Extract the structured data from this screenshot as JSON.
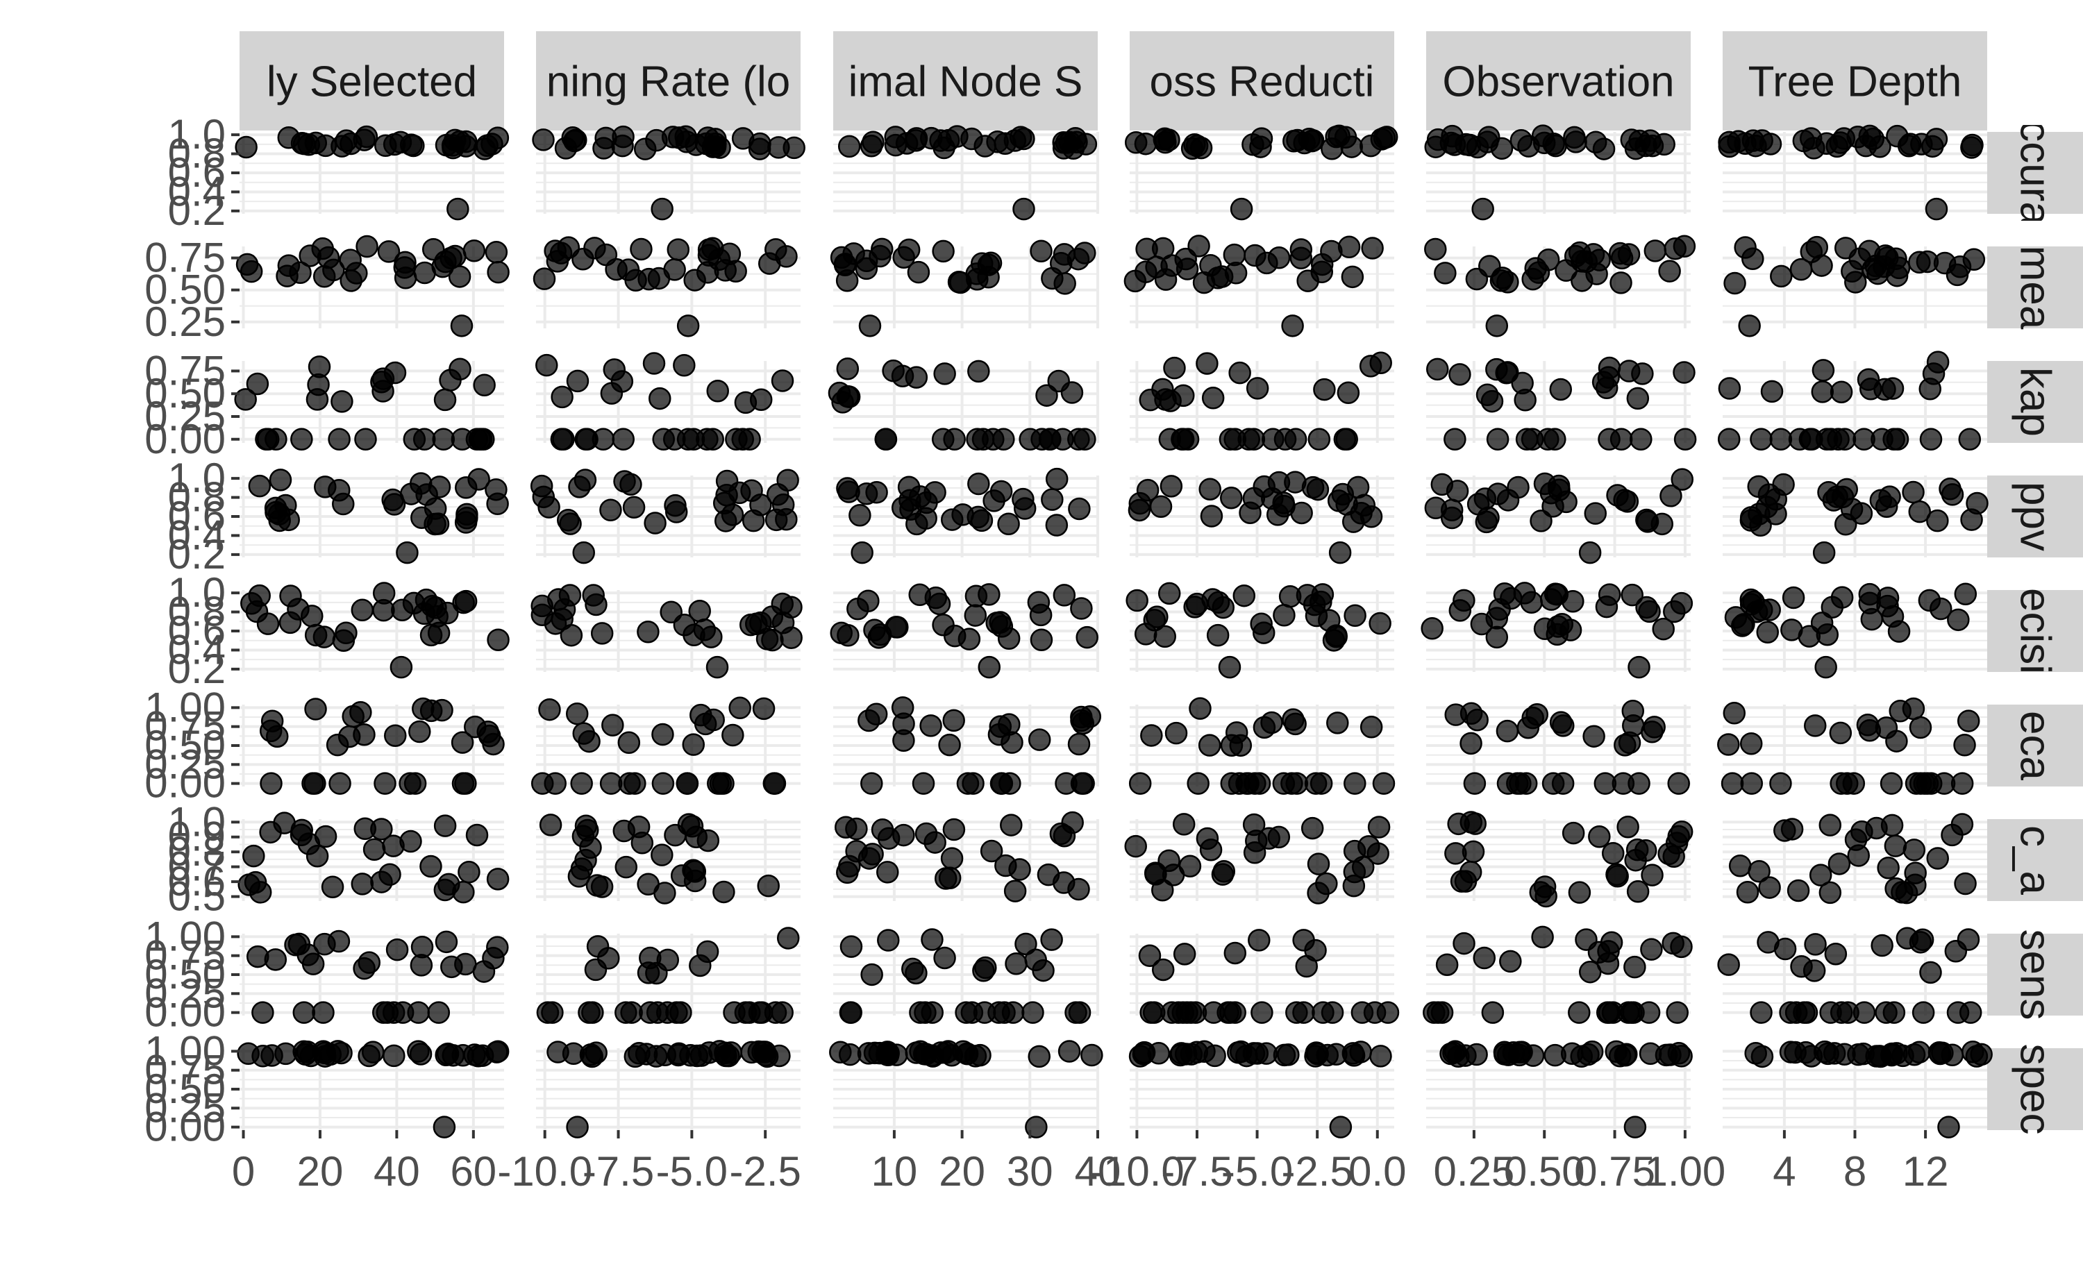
{
  "chart_data": {
    "type": "scatter",
    "layout": "facet_grid",
    "background": "#ffffff",
    "panel_grid": true,
    "point_color": "#000000",
    "point_opacity": 0.7,
    "strip_fill": "#d3d3d3",
    "grid_color": "#ebebeb",
    "columns": [
      {
        "label": "ly Selected",
        "ticks": [
          "0",
          "20",
          "40",
          "60"
        ],
        "tick_values": [
          0,
          20,
          40,
          60
        ],
        "xlim": [
          -1,
          68
        ]
      },
      {
        "label": "ning Rate (lo",
        "ticks": [
          "-10.0",
          "-7.5",
          "-5.0",
          "-2.5"
        ],
        "tick_values": [
          -10,
          -7.5,
          -5,
          -2.5
        ],
        "xlim": [
          -10.3,
          -1.3
        ]
      },
      {
        "label": "imal Node S",
        "ticks": [
          "10",
          "20",
          "30",
          "40"
        ],
        "tick_values": [
          10,
          20,
          30,
          40
        ],
        "xlim": [
          1,
          40
        ]
      },
      {
        "label": "oss Reducti",
        "ticks": [
          "-10.0",
          "-7.5",
          "-5.0",
          "-2.5",
          "0.0"
        ],
        "tick_values": [
          -10,
          -7.5,
          -5,
          -2.5,
          0
        ],
        "xlim": [
          -10.3,
          0.7
        ]
      },
      {
        "label": "Observation",
        "ticks": [
          "0.25",
          "0.50",
          "0.75",
          "1.00"
        ],
        "tick_values": [
          0.25,
          0.5,
          0.75,
          1
        ],
        "xlim": [
          0.08,
          1.02
        ]
      },
      {
        "label": "Tree Depth",
        "ticks": [
          "4",
          "8",
          "12"
        ],
        "tick_values": [
          4,
          8,
          12
        ],
        "xlim": [
          0.5,
          15.5
        ]
      }
    ],
    "rows": [
      {
        "label": "ccura",
        "ticks": [
          "0.2",
          "0.4",
          "0.6",
          "0.8",
          "1.0"
        ],
        "tick_values": [
          0.2,
          0.4,
          0.6,
          0.8,
          1.0
        ],
        "ylim": [
          0.17,
          1.03
        ],
        "level_bands": [
          [
            0.85,
            0.92
          ],
          [
            0.92,
            0.99
          ]
        ],
        "outlier": 0.22
      },
      {
        "label": "mea",
        "ticks": [
          "0.25",
          "0.50",
          "0.75"
        ],
        "tick_values": [
          0.25,
          0.5,
          0.75
        ],
        "ylim": [
          0.2,
          0.84
        ],
        "level_bands": [
          [
            0.55,
            0.85
          ]
        ],
        "outlier": 0.22
      },
      {
        "label": "kap",
        "ticks": [
          "0.00",
          "0.25",
          "0.50",
          "0.75"
        ],
        "tick_values": [
          0,
          0.25,
          0.5,
          0.75
        ],
        "ylim": [
          -0.04,
          0.86
        ],
        "level_bands": [
          [
            0.0,
            0.0
          ],
          [
            0.4,
            0.85
          ]
        ],
        "outlier": null
      },
      {
        "label": "ppv",
        "ticks": [
          "0.2",
          "0.4",
          "0.6",
          "0.8",
          "1.0"
        ],
        "tick_values": [
          0.2,
          0.4,
          0.6,
          0.8,
          1.0
        ],
        "ylim": [
          0.17,
          1.03
        ],
        "level_bands": [
          [
            0.5,
            1.0
          ]
        ],
        "outlier": 0.22
      },
      {
        "label": "ecisi",
        "ticks": [
          "0.2",
          "0.4",
          "0.6",
          "0.8",
          "1.0"
        ],
        "tick_values": [
          0.2,
          0.4,
          0.6,
          0.8,
          1.0
        ],
        "ylim": [
          0.17,
          1.03
        ],
        "level_bands": [
          [
            0.5,
            1.0
          ]
        ],
        "outlier": 0.22
      },
      {
        "label": "eca",
        "ticks": [
          "0.00",
          "0.25",
          "0.50",
          "0.75",
          "1.00"
        ],
        "tick_values": [
          0,
          0.25,
          0.5,
          0.75,
          1
        ],
        "ylim": [
          -0.04,
          1.04
        ],
        "level_bands": [
          [
            0.0,
            0.0
          ],
          [
            0.5,
            1.0
          ]
        ],
        "outlier": null
      },
      {
        "label": "c_a",
        "ticks": [
          "0.5",
          "0.6",
          "0.7",
          "0.8",
          "0.9",
          "1.0"
        ],
        "tick_values": [
          0.5,
          0.6,
          0.7,
          0.8,
          0.9,
          1.0
        ],
        "ylim": [
          0.47,
          1.02
        ],
        "level_bands": [
          [
            0.5,
            1.0
          ]
        ],
        "outlier": null
      },
      {
        "label": "sens",
        "ticks": [
          "0.00",
          "0.25",
          "0.50",
          "0.75",
          "1.00"
        ],
        "tick_values": [
          0,
          0.25,
          0.5,
          0.75,
          1
        ],
        "ylim": [
          -0.04,
          1.04
        ],
        "level_bands": [
          [
            0.0,
            0.0
          ],
          [
            0.5,
            1.0
          ]
        ],
        "outlier": null
      },
      {
        "label": "spec",
        "ticks": [
          "0.00",
          "0.25",
          "0.50",
          "0.75",
          "1.00"
        ],
        "tick_values": [
          0,
          0.25,
          0.5,
          0.75,
          1
        ],
        "ylim": [
          -0.04,
          1.04
        ],
        "level_bands": [
          [
            0.93,
            1.0
          ]
        ],
        "outlier": 0.0
      }
    ],
    "n_points_per_panel": 28
  }
}
